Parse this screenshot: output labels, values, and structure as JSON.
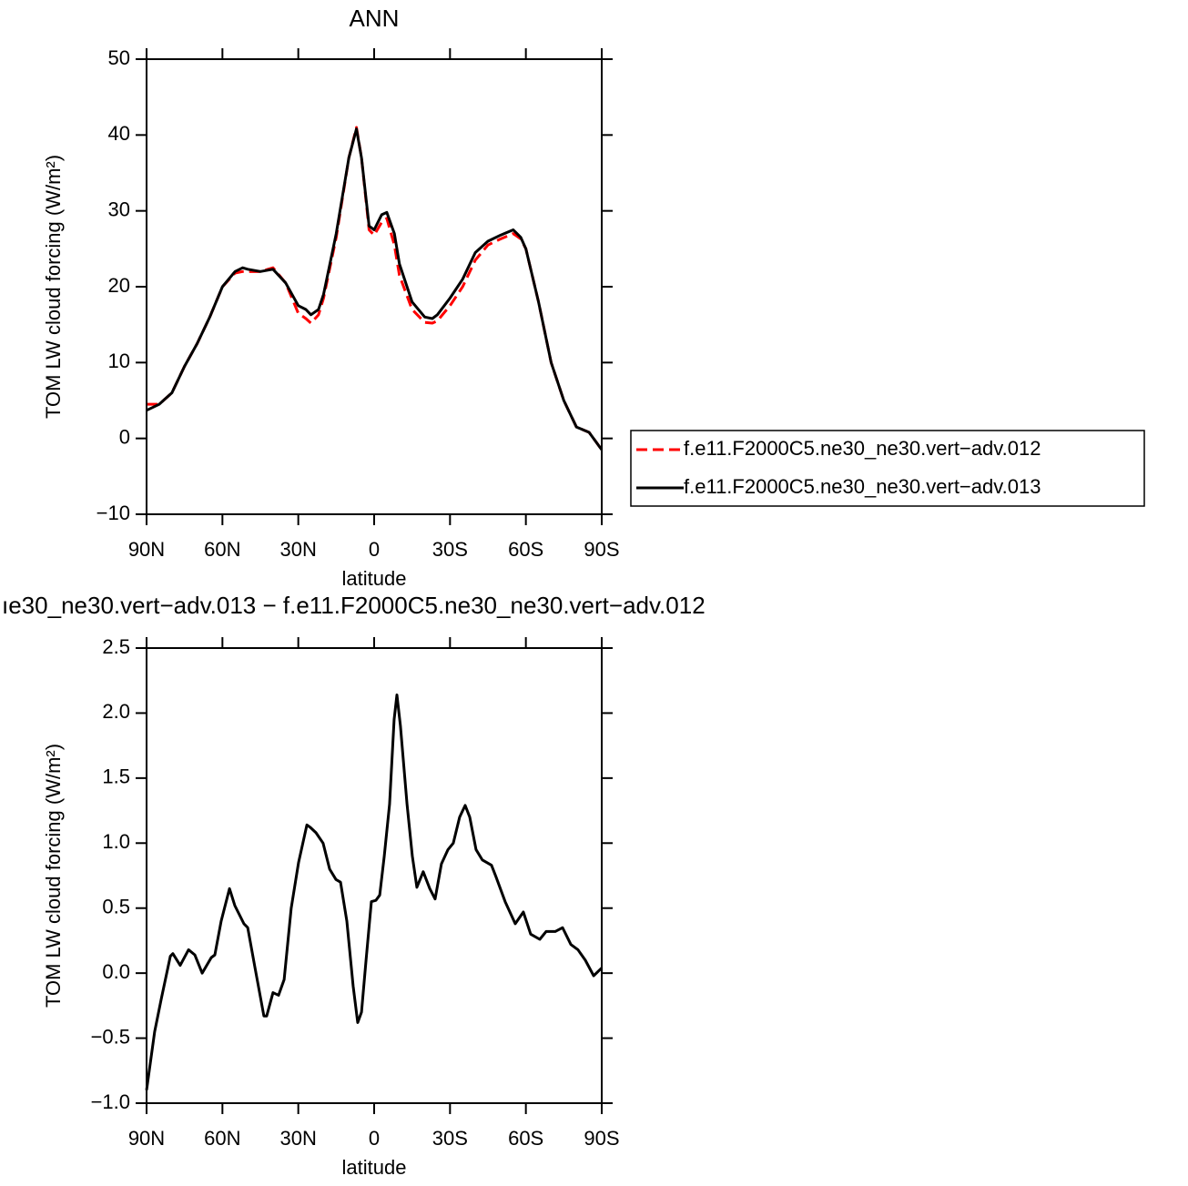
{
  "chart_data": [
    {
      "type": "line",
      "title": "ANN",
      "xlabel": "latitude",
      "ylabel": "TOM LW cloud forcing (W/m²)",
      "xlim": [
        90,
        -90
      ],
      "ylim": [
        -10,
        50
      ],
      "xticks": [
        {
          "value": 90,
          "label": "90N"
        },
        {
          "value": 60,
          "label": "60N"
        },
        {
          "value": 30,
          "label": "30N"
        },
        0,
        {
          "value": -30,
          "label": "30S"
        },
        {
          "value": -60,
          "label": "60S"
        },
        {
          "value": -90,
          "label": "90S"
        }
      ],
      "yticks": [
        {
          "value": -10,
          "label": "−10"
        },
        0,
        10,
        20,
        30,
        40,
        50
      ],
      "legend": "right",
      "x": [
        90,
        85,
        80,
        75,
        70,
        65,
        60,
        55,
        52,
        50,
        45,
        40,
        35,
        30,
        27,
        25,
        22,
        20,
        15,
        10,
        7,
        5,
        2,
        0,
        -3,
        -5,
        -8,
        -10,
        -15,
        -20,
        -23,
        -25,
        -30,
        -35,
        -40,
        -45,
        -50,
        -55,
        -58,
        -60,
        -65,
        -70,
        -75,
        -80,
        -85,
        -90
      ],
      "series": [
        {
          "name": "f.e11.F2000C5.ne30_ne30.vert−adv.012",
          "color": "#ff0000",
          "style": "dashed",
          "values": [
            4.5,
            4.5,
            6,
            9.5,
            12.5,
            16,
            20,
            21.8,
            22,
            22,
            22,
            22.5,
            20.5,
            16.5,
            15.8,
            15.2,
            16.3,
            18.5,
            26.5,
            37,
            41,
            37,
            27.5,
            26.8,
            28.5,
            29,
            25.5,
            21.5,
            17,
            15.3,
            15.2,
            15.5,
            17.5,
            20,
            23.5,
            25.5,
            26.3,
            27,
            26.3,
            25,
            18,
            10,
            5,
            1.5,
            0.8,
            -1.5
          ]
        },
        {
          "name": "f.e11.F2000C5.ne30_ne30.vert−adv.013",
          "color": "#000000",
          "style": "solid",
          "values": [
            3.7,
            4.5,
            6,
            9.5,
            12.5,
            16,
            20,
            22,
            22.5,
            22.3,
            22,
            22.3,
            20.5,
            17.5,
            17,
            16.3,
            17,
            19,
            27,
            37,
            40.8,
            37,
            28,
            27.5,
            29.5,
            29.8,
            27,
            23,
            18,
            16,
            15.8,
            16.3,
            18.5,
            21,
            24.5,
            26,
            26.8,
            27.5,
            26.5,
            25,
            18,
            10,
            5,
            1.5,
            0.8,
            -1.5
          ]
        }
      ]
    },
    {
      "type": "line",
      "title": "ıe30_ne30.vert−adv.013 − f.e11.F2000C5.ne30_ne30.vert−adv.012",
      "xlabel": "latitude",
      "ylabel": "TOM LW cloud forcing (W/m²)",
      "xlim": [
        90,
        -90
      ],
      "ylim": [
        -1.0,
        2.5
      ],
      "xticks": [
        {
          "value": 90,
          "label": "90N"
        },
        {
          "value": 60,
          "label": "60N"
        },
        {
          "value": 30,
          "label": "30N"
        },
        0,
        {
          "value": -30,
          "label": "30S"
        },
        {
          "value": -60,
          "label": "60S"
        },
        {
          "value": -90,
          "label": "90S"
        }
      ],
      "yticks": [
        {
          "value": -1.0,
          "label": "−1.0"
        },
        {
          "value": -0.5,
          "label": "−0.5"
        },
        {
          "value": 0,
          "label": "0.0"
        },
        0.5,
        {
          "value": 1,
          "label": "1.0"
        },
        1.5,
        {
          "value": 2,
          "label": "2.0"
        },
        2.5
      ],
      "x": [
        90,
        86.8,
        84.2,
        80.6,
        79.6,
        76.7,
        73.4,
        70.9,
        68,
        64.4,
        63,
        60.5,
        57.2,
        55.1,
        51.5,
        50,
        47.2,
        43.6,
        42.5,
        40,
        37.8,
        35.6,
        32.8,
        29.9,
        26.6,
        25.2,
        23,
        20.2,
        17.6,
        15.1,
        13.3,
        10.8,
        8.3,
        6.5,
        5,
        3.2,
        1.1,
        -0.7,
        -2.2,
        -4,
        -6.1,
        -7.9,
        -9,
        -10.4,
        -13,
        -15.1,
        -16.9,
        -19.4,
        -22,
        -24.1,
        -26.6,
        -29.2,
        -31.3,
        -33.8,
        -36,
        -37.8,
        -40.3,
        -42.8,
        -46.4,
        -48.2,
        -51.8,
        -55.8,
        -59,
        -61.9,
        -65.5,
        -68,
        -71.6,
        -74.5,
        -77.8,
        -80.6,
        -83.5,
        -86.8,
        -90
      ],
      "series": [
        {
          "color": "#000000",
          "style": "solid",
          "values": [
            -0.9,
            -0.45,
            -0.2,
            0.13,
            0.15,
            0.06,
            0.18,
            0.14,
            0,
            0.12,
            0.14,
            0.4,
            0.65,
            0.52,
            0.38,
            0.35,
            0.05,
            -0.33,
            -0.33,
            -0.15,
            -0.17,
            -0.05,
            0.5,
            0.85,
            1.14,
            1.12,
            1.08,
            1.0,
            0.8,
            0.72,
            0.7,
            0.4,
            -0.1,
            -0.38,
            -0.3,
            0.1,
            0.55,
            0.56,
            0.6,
            0.9,
            1.3,
            1.95,
            2.14,
            1.9,
            1.3,
            0.9,
            0.66,
            0.78,
            0.65,
            0.57,
            0.84,
            0.95,
            1.0,
            1.2,
            1.29,
            1.2,
            0.95,
            0.87,
            0.83,
            0.74,
            0.55,
            0.38,
            0.47,
            0.3,
            0.26,
            0.32,
            0.32,
            0.35,
            0.22,
            0.18,
            0.1,
            -0.02,
            0.04
          ]
        }
      ]
    }
  ]
}
